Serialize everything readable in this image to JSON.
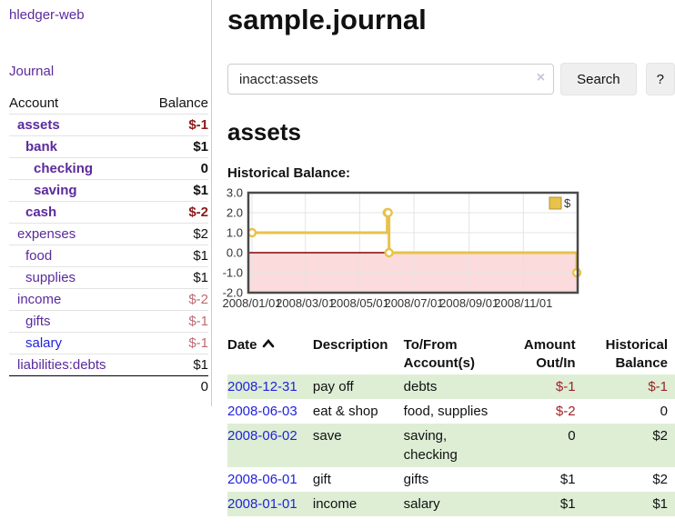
{
  "app": {
    "brand": "hledger-web",
    "nav_journal": "Journal"
  },
  "sidebar": {
    "accounts_header": {
      "account": "Account",
      "balance": "Balance"
    },
    "accounts": [
      {
        "name": "assets",
        "balance": "$-1",
        "depth": 1,
        "bold": true,
        "neg": "strong"
      },
      {
        "name": "bank",
        "balance": "$1",
        "depth": 2,
        "bold": true,
        "neg": "none"
      },
      {
        "name": "checking",
        "balance": "0",
        "depth": 3,
        "bold": true,
        "neg": "none"
      },
      {
        "name": "saving",
        "balance": "$1",
        "depth": 3,
        "bold": true,
        "neg": "none"
      },
      {
        "name": "cash",
        "balance": "$-2",
        "depth": 2,
        "bold": true,
        "neg": "strong"
      },
      {
        "name": "expenses",
        "balance": "$2",
        "depth": 1,
        "bold": false,
        "neg": "none"
      },
      {
        "name": "food",
        "balance": "$1",
        "depth": 2,
        "bold": false,
        "neg": "none"
      },
      {
        "name": "supplies",
        "balance": "$1",
        "depth": 2,
        "bold": false,
        "neg": "none"
      },
      {
        "name": "income",
        "balance": "$-2",
        "depth": 1,
        "bold": false,
        "neg": "soft"
      },
      {
        "name": "gifts",
        "balance": "$-1",
        "depth": 2,
        "bold": false,
        "neg": "soft"
      },
      {
        "name": "salary",
        "balance": "$-1",
        "depth": 2,
        "bold": false,
        "neg": "soft",
        "link_color": "blue"
      },
      {
        "name": "liabilities:debts",
        "balance": "$1",
        "depth": 1,
        "bold": false,
        "neg": "none"
      }
    ],
    "total": "0"
  },
  "header": {
    "title": "sample.journal"
  },
  "search": {
    "value": "inacct:assets",
    "clear_icon": "×",
    "button": "Search",
    "help_button": "?"
  },
  "account_page": {
    "title": "assets",
    "chart_label": "Historical Balance:"
  },
  "chart_data": {
    "type": "line",
    "step": true,
    "xlim": [
      "2008-01-01",
      "2009-01-01"
    ],
    "ylim": [
      -2,
      3
    ],
    "series": [
      {
        "name": "$",
        "color": "#e8c24a",
        "points": [
          [
            "2008-01-01",
            1
          ],
          [
            "2008-06-01",
            2
          ],
          [
            "2008-06-02",
            2
          ],
          [
            "2008-06-03",
            0
          ],
          [
            "2008-12-31",
            -1
          ]
        ]
      }
    ],
    "x_ticks": [
      {
        "date": "2008-01-01",
        "label": "2008/01/01"
      },
      {
        "date": "2008-03-01",
        "label": "2008/03/01"
      },
      {
        "date": "2008-05-01",
        "label": "2008/05/01"
      },
      {
        "date": "2008-07-01",
        "label": "2008/07/01"
      },
      {
        "date": "2008-09-01",
        "label": "2008/09/01"
      },
      {
        "date": "2008-11-01",
        "label": "2008/11/01"
      }
    ],
    "y_ticks": [
      {
        "v": 3,
        "label": "3.0"
      },
      {
        "v": 2,
        "label": "2.0"
      },
      {
        "v": 1,
        "label": "1.0"
      },
      {
        "v": 0,
        "label": "0.0"
      },
      {
        "v": -1,
        "label": "-1.0"
      },
      {
        "v": -2,
        "label": "-2.0"
      }
    ],
    "negative_region_fill": "#fbdbdb",
    "zero_line_color": "#8b0000",
    "grid_color": "#e4e4e4",
    "border_color": "#4a4a4a",
    "legend": {
      "label": "$",
      "position": "top-right"
    }
  },
  "register": {
    "columns": [
      {
        "label": "Date",
        "sorted": "ascending"
      },
      {
        "label": "Description"
      },
      {
        "label": "To/From Account(s)"
      },
      {
        "label": "Amount Out/In",
        "align": "right"
      },
      {
        "label": "Historical Balance",
        "align": "right"
      }
    ],
    "rows": [
      {
        "date": "2008-12-31",
        "description": "pay off",
        "accounts": "debts",
        "amount": "$-1",
        "balance": "$-1",
        "amount_neg": true,
        "balance_neg": true
      },
      {
        "date": "2008-06-03",
        "description": "eat & shop",
        "accounts": "food, supplies",
        "amount": "$-2",
        "balance": "0",
        "amount_neg": true,
        "balance_neg": false
      },
      {
        "date": "2008-06-02",
        "description": "save",
        "accounts": "saving, checking",
        "amount": "0",
        "balance": "$2",
        "amount_neg": false,
        "balance_neg": false
      },
      {
        "date": "2008-06-01",
        "description": "gift",
        "accounts": "gifts",
        "amount": "$1",
        "balance": "$2",
        "amount_neg": false,
        "balance_neg": false
      },
      {
        "date": "2008-01-01",
        "description": "income",
        "accounts": "salary",
        "amount": "$1",
        "balance": "$1",
        "amount_neg": false,
        "balance_neg": false
      }
    ]
  },
  "icons": {
    "sort_ascending": "chevron-up",
    "clear_search": "x-mark"
  },
  "colors": {
    "accent_purple": "#5b2a9d",
    "link_blue": "#2222dd",
    "negative_strong": "#8b1a1a",
    "negative_soft": "#bd6b74",
    "negative": "#9e2227",
    "row_stripe_green": "#ddeed5"
  }
}
